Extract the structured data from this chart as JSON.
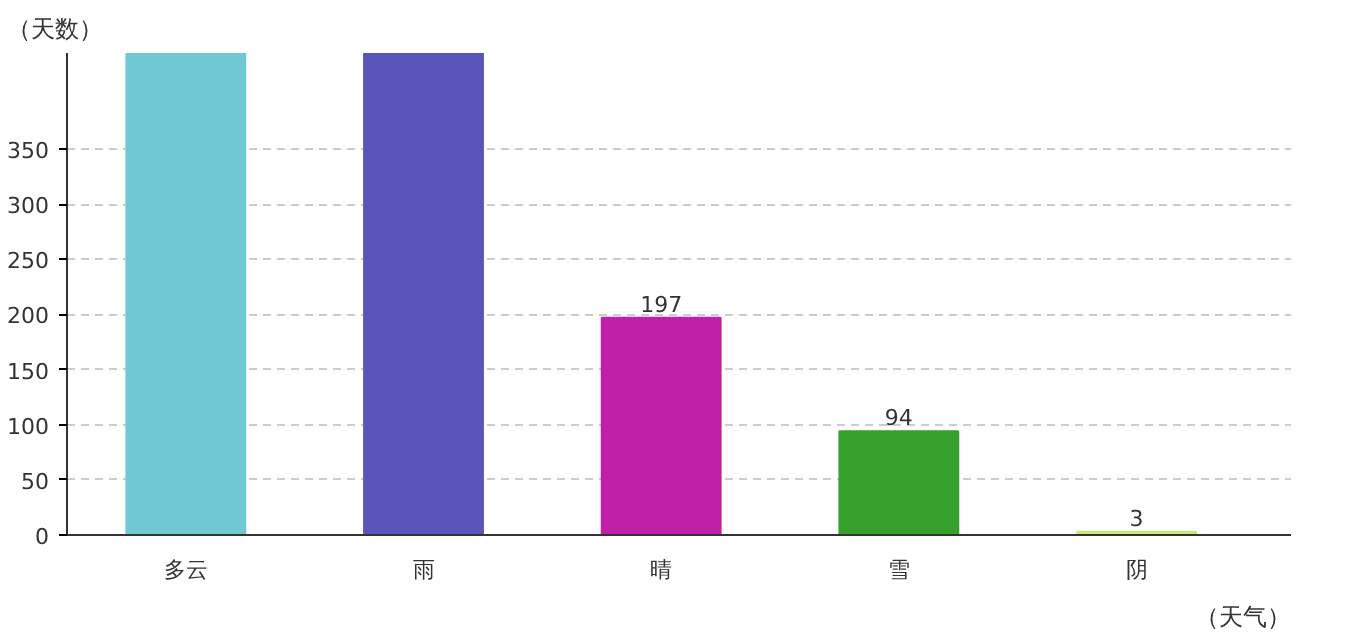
{
  "chart_data": {
    "type": "bar",
    "xlabel": "（天气）",
    "ylabel": "（天数）",
    "categories": [
      "多云",
      "雨",
      "晴",
      "雪",
      "阴"
    ],
    "values": [
      437,
      437,
      197,
      94,
      3
    ],
    "colors": [
      "#6fc8d2",
      "#5a55b8",
      "#c020a8",
      "#36a02c",
      "#c4e87a"
    ],
    "value_labels": [
      null,
      null,
      "197",
      "94",
      "3"
    ],
    "ylim": [
      0,
      437
    ],
    "yticks": [
      0,
      50,
      100,
      150,
      200,
      250,
      300,
      350
    ],
    "grid": "y"
  }
}
